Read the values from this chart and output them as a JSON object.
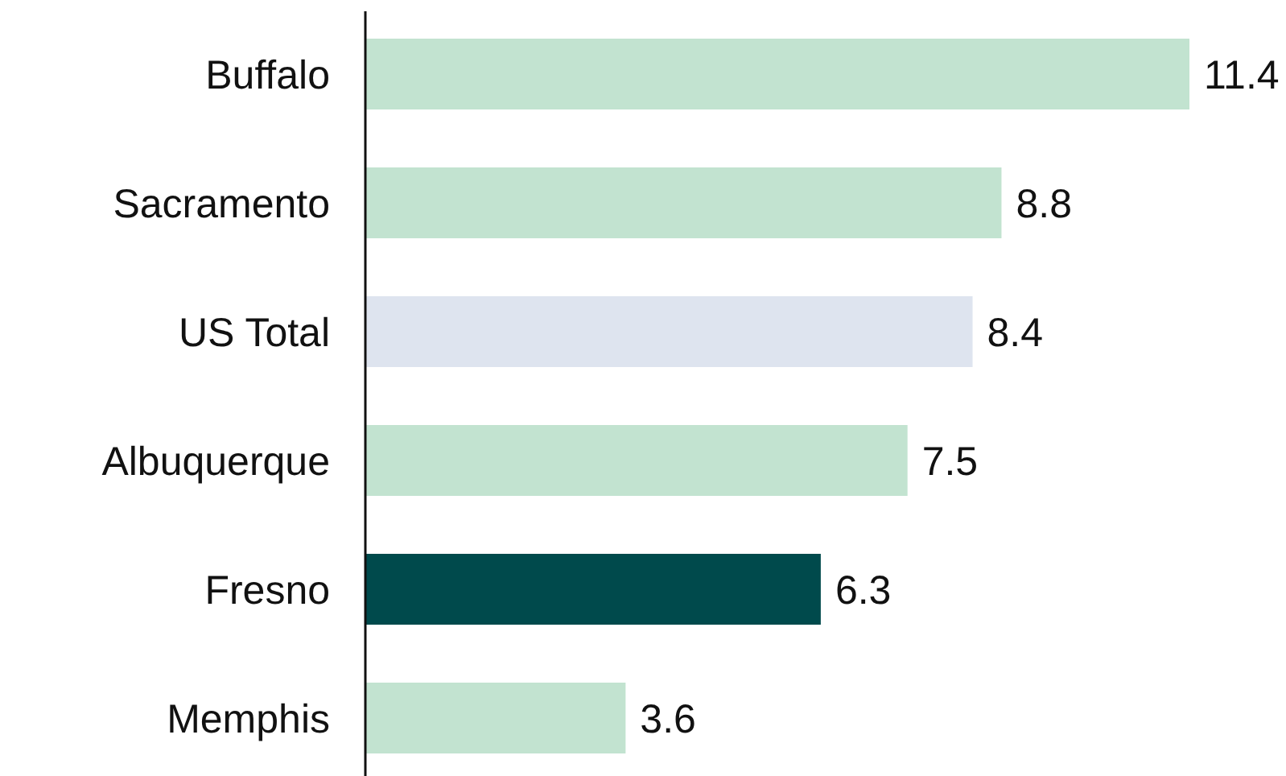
{
  "chart_data": {
    "type": "bar",
    "orientation": "horizontal",
    "categories": [
      "Buffalo",
      "Sacramento",
      "US Total",
      "Albuquerque",
      "Fresno",
      "Memphis"
    ],
    "values": [
      11.4,
      8.8,
      8.4,
      7.5,
      6.3,
      3.6
    ],
    "colors": [
      "#c2e3d0",
      "#c2e3d0",
      "#dee4ef",
      "#c2e3d0",
      "#004a4c",
      "#c2e3d0"
    ],
    "data_labels": true
  }
}
